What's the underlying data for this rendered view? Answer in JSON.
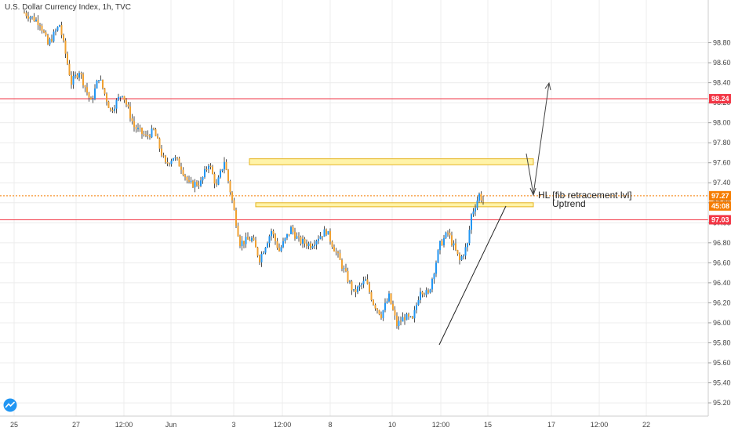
{
  "header": {
    "title": "U.S. Dollar Currency Index, 1h, TVC"
  },
  "colors": {
    "candle_up": "#2196f3",
    "candle_down": "#f0a030",
    "wick": "#222222",
    "resistance_line": "#f23645",
    "current_price_line": "#f57c00",
    "zone_fill": "#fff3a8",
    "zone_border": "#e6b422",
    "grid": "#ececec",
    "axis_border": "#cccccc",
    "badge_red": "#f23645",
    "badge_orange": "#f57c00",
    "logo": "#2196f3"
  },
  "chart_data": {
    "type": "candlestick",
    "title": "U.S. Dollar Currency Index, 1h, TVC",
    "x_tick_labels": [
      "25",
      "27",
      "12:00",
      "Jun",
      "3",
      "12:00",
      "8",
      "10",
      "12:00",
      "15",
      "17",
      "12:00",
      "22"
    ],
    "y_tick_labels": [
      "98.80",
      "98.60",
      "98.40",
      "98.20",
      "98.00",
      "97.80",
      "97.60",
      "97.40",
      "97.20",
      "97.00",
      "96.80",
      "96.60",
      "96.40",
      "96.20",
      "96.00",
      "95.80",
      "95.60",
      "95.40",
      "95.20"
    ],
    "ylim": [
      95.13,
      99.0
    ],
    "price_path": [
      [
        0,
        99.1
      ],
      [
        8,
        99.0
      ],
      [
        12,
        98.78
      ],
      [
        18,
        98.98
      ],
      [
        24,
        98.4
      ],
      [
        28,
        98.52
      ],
      [
        34,
        98.2
      ],
      [
        38,
        98.46
      ],
      [
        44,
        98.12
      ],
      [
        50,
        98.3
      ],
      [
        56,
        97.96
      ],
      [
        62,
        97.86
      ],
      [
        66,
        97.92
      ],
      [
        72,
        97.58
      ],
      [
        76,
        97.66
      ],
      [
        80,
        97.56
      ],
      [
        84,
        97.38
      ],
      [
        90,
        97.4
      ],
      [
        94,
        97.6
      ],
      [
        98,
        97.36
      ],
      [
        102,
        97.62
      ],
      [
        106,
        97.22
      ],
      [
        110,
        96.8
      ],
      [
        116,
        96.84
      ],
      [
        120,
        96.64
      ],
      [
        126,
        96.92
      ],
      [
        130,
        96.72
      ],
      [
        136,
        96.94
      ],
      [
        140,
        96.82
      ],
      [
        146,
        96.78
      ],
      [
        150,
        96.86
      ],
      [
        154,
        96.92
      ],
      [
        160,
        96.66
      ],
      [
        164,
        96.48
      ],
      [
        168,
        96.3
      ],
      [
        174,
        96.42
      ],
      [
        178,
        96.2
      ],
      [
        182,
        96.08
      ],
      [
        186,
        96.26
      ],
      [
        190,
        95.98
      ],
      [
        194,
        96.06
      ],
      [
        198,
        96.02
      ],
      [
        202,
        96.34
      ],
      [
        206,
        96.28
      ],
      [
        212,
        96.78
      ],
      [
        216,
        96.9
      ],
      [
        222,
        96.62
      ],
      [
        226,
        96.78
      ],
      [
        228,
        97.08
      ],
      [
        232,
        97.28
      ],
      [
        234,
        97.22
      ]
    ],
    "horizontal_levels": [
      {
        "price": 98.24,
        "label": "98.24",
        "style": "solid"
      },
      {
        "price": 97.03,
        "label": "97.03",
        "style": "solid"
      },
      {
        "price": 97.27,
        "label": "97.27",
        "style": "dotted"
      }
    ],
    "countdown_label": "45:08",
    "zones": [
      {
        "top": 97.64,
        "bottom": 97.58
      },
      {
        "top": 97.2,
        "bottom": 97.16
      }
    ],
    "annotations": [
      {
        "text": "HL [fib retracement lvl]"
      },
      {
        "text": "Uptrend"
      }
    ]
  }
}
